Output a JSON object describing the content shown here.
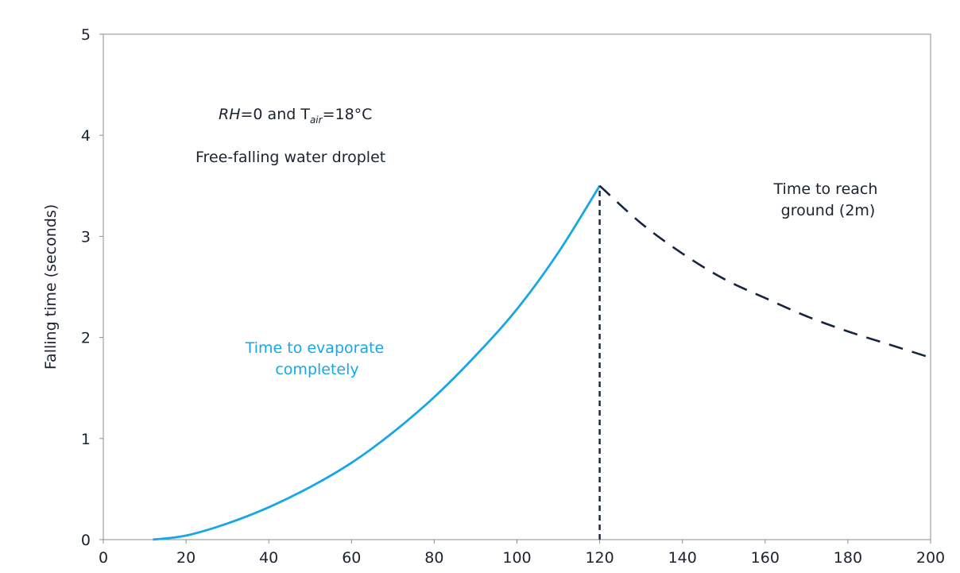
{
  "chart_data": {
    "type": "line",
    "title": "",
    "xlabel": "",
    "ylabel": "Falling time (seconds)",
    "xlim": [
      0,
      200
    ],
    "ylim": [
      0,
      5
    ],
    "xticks": [
      0,
      20,
      40,
      60,
      80,
      100,
      120,
      140,
      160,
      180,
      200
    ],
    "yticks": [
      0,
      1,
      2,
      3,
      4,
      5
    ],
    "grid": false,
    "legend": "none",
    "series": [
      {
        "color": "#17a7e8",
        "style": "solid",
        "x": [
          12,
          20,
          30,
          40,
          50,
          60,
          70,
          80,
          90,
          100,
          110,
          120
        ],
        "y": [
          0.0,
          0.04,
          0.16,
          0.32,
          0.52,
          0.76,
          1.06,
          1.41,
          1.82,
          2.28,
          2.84,
          3.5
        ]
      },
      {
        "color": "#15243f",
        "style": "dashed",
        "x": [
          120,
          130,
          140,
          150,
          160,
          170,
          180,
          190,
          200
        ],
        "y": [
          3.5,
          3.13,
          2.83,
          2.58,
          2.39,
          2.21,
          2.06,
          1.93,
          1.8
        ]
      }
    ],
    "vertical_line": {
      "x": 120,
      "y_from": 0,
      "y_to": 3.5,
      "color": "#15243f",
      "style": "dotted"
    },
    "annotations": {
      "condition": {
        "rh": "RH",
        "rh_value": "=0 and T",
        "subscript": "air",
        "temp": "=18°C"
      },
      "droplet": "Free-falling water droplet",
      "evaporate": [
        "Time to evaporate",
        "completely"
      ],
      "ground": [
        "Time to reach",
        "ground (2m)"
      ]
    }
  }
}
